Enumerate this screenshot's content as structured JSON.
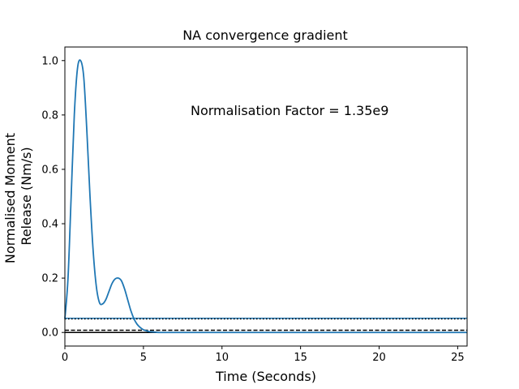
{
  "chart_data": {
    "type": "line",
    "title": "NA convergence gradient",
    "xlabel": "Time (Seconds)",
    "ylabel_lines": [
      "Normalised Moment",
      "Release (Nm/s)"
    ],
    "xlim": [
      0,
      25.6
    ],
    "ylim": [
      -0.05,
      1.05
    ],
    "xticks": [
      0,
      5,
      10,
      15,
      20,
      25
    ],
    "yticks": [
      0.0,
      0.2,
      0.4,
      0.6,
      0.8,
      1.0
    ],
    "xtick_labels": [
      "0",
      "5",
      "10",
      "15",
      "20",
      "25"
    ],
    "ytick_labels": [
      "0.0",
      "0.2",
      "0.4",
      "0.6",
      "0.8",
      "1.0"
    ],
    "grid": false,
    "annotation": "Normalisation Factor = 1.35e9",
    "series": [
      {
        "color": "#1f77b4",
        "x": [
          0,
          0.2,
          0.4,
          0.6,
          0.8,
          1.0,
          1.2,
          1.4,
          1.6,
          1.8,
          2.0,
          2.2,
          2.4,
          2.6,
          2.8,
          3.0,
          3.2,
          3.4,
          3.6,
          3.8,
          4.0,
          4.2,
          4.4,
          4.6,
          4.8,
          5.0,
          5.2,
          5.4,
          5.6,
          5.8,
          6.0,
          7.0,
          10.0,
          15.0,
          20.0,
          25.6
        ],
        "y": [
          0.05,
          0.2,
          0.5,
          0.8,
          0.97,
          1.0,
          0.94,
          0.74,
          0.5,
          0.3,
          0.17,
          0.11,
          0.105,
          0.12,
          0.15,
          0.18,
          0.197,
          0.2,
          0.19,
          0.16,
          0.12,
          0.08,
          0.05,
          0.03,
          0.018,
          0.01,
          0.006,
          0.003,
          0.002,
          0.001,
          0.0,
          0.0,
          0.0,
          0.0,
          0.0,
          0.0
        ]
      }
    ],
    "hlines": [
      {
        "y": 0.052,
        "color": "#1f77b4",
        "style": "solid"
      },
      {
        "y": 0.05,
        "color": "#000000",
        "style": "dotted"
      },
      {
        "y": 0.008,
        "color": "#000000",
        "style": "dashed"
      },
      {
        "y": 0.0,
        "color": "#000000",
        "style": "solid"
      }
    ]
  }
}
